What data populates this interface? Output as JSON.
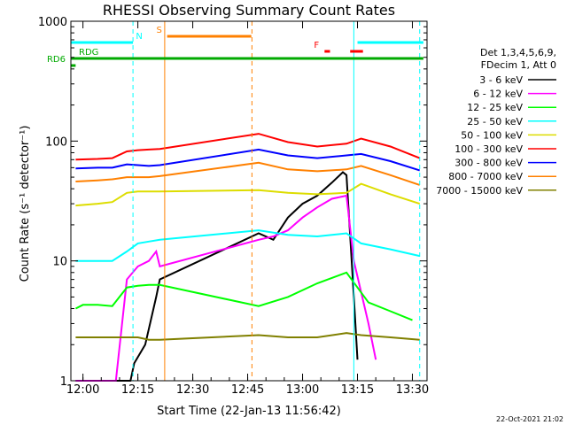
{
  "chart_data": {
    "type": "line",
    "title": "RHESSI Observing Summary Count Rates",
    "xlabel": "Start Time (22-Jan-13 11:56:42)",
    "ylabel": "Count Rate (s⁻¹ detector⁻¹)",
    "yscale": "log",
    "ylim": [
      1,
      1000
    ],
    "xlim": [
      "11:56:42",
      "13:34:00"
    ],
    "x_ticks": [
      "12:00",
      "12:15",
      "12:30",
      "12:45",
      "13:00",
      "13:15",
      "13:30"
    ],
    "y_ticks": [
      "1",
      "10",
      "100",
      "1000"
    ],
    "grid": false,
    "legend_position": "right",
    "legend_header": [
      "Det 1,3,4,5,6,9,",
      "FDecim 1, Att 0"
    ],
    "footer_date": "22-Oct-2021 21:02",
    "flags": [
      {
        "label": "N",
        "color": "#00ffff",
        "segments": [
          [
            "11:56:42",
            "12:13:40"
          ],
          [
            "13:15:00",
            "13:33:00"
          ]
        ]
      },
      {
        "label": "S",
        "color": "#ff8000",
        "segments": [
          [
            "12:23:00",
            "12:46:00"
          ]
        ]
      },
      {
        "label": "F",
        "color": "#ff0000",
        "segments": [
          [
            "13:06:00",
            "13:07:30"
          ],
          [
            "13:13:00",
            "13:16:30"
          ]
        ]
      },
      {
        "label": "RD6",
        "color": "#00aa00",
        "segments": [
          [
            "11:56:42",
            "11:58:00"
          ]
        ]
      },
      {
        "label": "RDG",
        "color": "#00aa00",
        "segments": [
          [
            "11:56:42",
            "13:33:00"
          ]
        ]
      }
    ],
    "vlines": [
      {
        "time": "12:13:40",
        "color": "#00ffff",
        "style": "dashed"
      },
      {
        "time": "12:22:20",
        "color": "#ff8000",
        "style": "solid"
      },
      {
        "time": "12:46:10",
        "color": "#ff8000",
        "style": "dashed"
      },
      {
        "time": "13:14:00",
        "color": "#00ffff",
        "style": "solid"
      },
      {
        "time": "13:32:00",
        "color": "#00ffff",
        "style": "dashed"
      }
    ],
    "series": [
      {
        "name": "3 - 6 keV",
        "color": "#000000",
        "x": [
          "11:58",
          "12:10",
          "12:13",
          "12:14",
          "12:17",
          "12:20",
          "12:21",
          "12:48",
          "12:52",
          "12:56",
          "13:00",
          "13:04",
          "13:08",
          "13:11",
          "13:12",
          "13:14",
          "13:15"
        ],
        "y": [
          1,
          1,
          1,
          1.4,
          2,
          5,
          7,
          17,
          15,
          23,
          30,
          35,
          45,
          55,
          52,
          5,
          1.5
        ]
      },
      {
        "name": "6 - 12 keV",
        "color": "#ff00ff",
        "x": [
          "11:58",
          "12:02",
          "12:04",
          "12:06",
          "12:09",
          "12:12",
          "12:15",
          "12:18",
          "12:20",
          "12:21",
          "12:48",
          "12:52",
          "12:56",
          "13:00",
          "13:04",
          "13:08",
          "13:12",
          "13:14",
          "13:18",
          "13:20"
        ],
        "y": [
          1,
          1,
          1,
          1,
          1,
          7,
          9,
          10,
          12,
          9,
          15,
          16,
          18,
          23,
          28,
          33,
          35,
          10,
          3,
          1.5
        ]
      },
      {
        "name": "12 - 25 keV",
        "color": "#00ff00",
        "x": [
          "11:58",
          "12:00",
          "12:04",
          "12:08",
          "12:12",
          "12:15",
          "12:18",
          "12:21",
          "12:48",
          "12:56",
          "13:04",
          "13:12",
          "13:18",
          "13:24",
          "13:30"
        ],
        "y": [
          4,
          4.3,
          4.3,
          4.2,
          6,
          6.2,
          6.3,
          6.3,
          4.2,
          5,
          6.5,
          8,
          4.5,
          3.8,
          3.2
        ]
      },
      {
        "name": "25 - 50 keV",
        "color": "#00ffff",
        "x": [
          "11:58",
          "12:04",
          "12:08",
          "12:12",
          "12:15",
          "12:18",
          "12:21",
          "12:48",
          "12:56",
          "13:04",
          "13:12",
          "13:16",
          "13:24",
          "13:32"
        ],
        "y": [
          10,
          10,
          10,
          12,
          14,
          14.5,
          15,
          18,
          16.5,
          16,
          17,
          14,
          12.5,
          11
        ]
      },
      {
        "name": "50 - 100 keV",
        "color": "#dddd00",
        "x": [
          "11:58",
          "12:04",
          "12:08",
          "12:12",
          "12:15",
          "12:18",
          "12:21",
          "12:48",
          "12:56",
          "13:04",
          "13:12",
          "13:16",
          "13:24",
          "13:32"
        ],
        "y": [
          29,
          30,
          31,
          37,
          38,
          38,
          38,
          39,
          37,
          36,
          37,
          44,
          36,
          30
        ]
      },
      {
        "name": "100 - 300 keV",
        "color": "#ff0000",
        "x": [
          "11:58",
          "12:04",
          "12:08",
          "12:12",
          "12:15",
          "12:18",
          "12:21",
          "12:48",
          "12:56",
          "13:04",
          "13:12",
          "13:16",
          "13:24",
          "13:32"
        ],
        "y": [
          70,
          71,
          72,
          82,
          84,
          85,
          86,
          115,
          98,
          90,
          95,
          105,
          90,
          72
        ]
      },
      {
        "name": "300 - 800 keV",
        "color": "#0000ff",
        "x": [
          "11:58",
          "12:04",
          "12:08",
          "12:12",
          "12:15",
          "12:18",
          "12:21",
          "12:48",
          "12:56",
          "13:04",
          "13:12",
          "13:16",
          "13:24",
          "13:32"
        ],
        "y": [
          59,
          60,
          60,
          64,
          63,
          62,
          63,
          85,
          76,
          72,
          76,
          78,
          68,
          57
        ]
      },
      {
        "name": "800 - 7000 keV",
        "color": "#ff8000",
        "x": [
          "11:58",
          "12:04",
          "12:08",
          "12:12",
          "12:15",
          "12:18",
          "12:21",
          "12:48",
          "12:56",
          "13:04",
          "13:12",
          "13:16",
          "13:24",
          "13:32"
        ],
        "y": [
          46,
          47,
          48,
          50,
          50,
          50,
          51,
          66,
          58,
          56,
          58,
          62,
          52,
          43
        ]
      },
      {
        "name": "7000 - 15000 keV",
        "color": "#808000",
        "x": [
          "11:58",
          "12:04",
          "12:08",
          "12:12",
          "12:15",
          "12:18",
          "12:21",
          "12:48",
          "12:56",
          "13:04",
          "13:12",
          "13:16",
          "13:24",
          "13:32"
        ],
        "y": [
          2.3,
          2.3,
          2.3,
          2.3,
          2.3,
          2.2,
          2.2,
          2.4,
          2.3,
          2.3,
          2.5,
          2.4,
          2.3,
          2.2
        ]
      }
    ]
  }
}
